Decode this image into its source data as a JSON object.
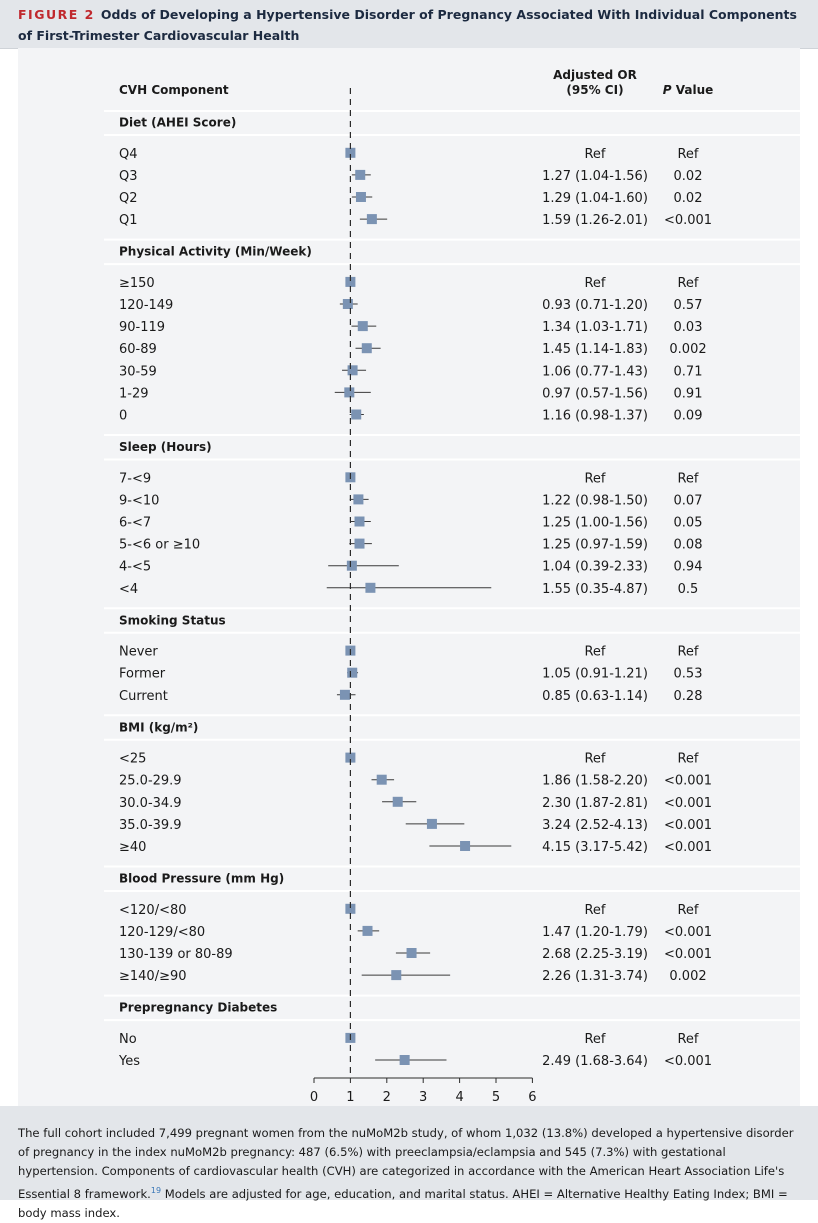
{
  "figure": {
    "label": "FIGURE 2",
    "title": "Odds of Developing a Hypertensive Disorder of Pregnancy Associated With Individual Components of First-Trimester Cardiovascular Health"
  },
  "columns": {
    "component": "CVH Component",
    "or_line1": "Adjusted OR",
    "or_line2": "(95% CI)",
    "p_value_italic": "P",
    "p_value_rest": " Value"
  },
  "chart_data": {
    "type": "forest",
    "xlabel": "Adjusted OR",
    "xlim": [
      0,
      6
    ],
    "xticks": [
      0,
      1,
      2,
      3,
      4,
      5,
      6
    ],
    "reference_line": 1,
    "colors": {
      "marker": "#7b93b3",
      "whisker": "#3a3a3a",
      "panel": "#f3f4f6",
      "header": "#e3e6ea"
    },
    "sections": [
      {
        "name": "Diet (AHEI Score)",
        "rows": [
          {
            "label": "Q4",
            "or": 1.0,
            "lo": 1.0,
            "hi": 1.0,
            "or_text": "Ref",
            "p": "Ref"
          },
          {
            "label": "Q3",
            "or": 1.27,
            "lo": 1.04,
            "hi": 1.56,
            "or_text": "1.27 (1.04-1.56)",
            "p": "0.02"
          },
          {
            "label": "Q2",
            "or": 1.29,
            "lo": 1.04,
            "hi": 1.6,
            "or_text": "1.29 (1.04-1.60)",
            "p": "0.02"
          },
          {
            "label": "Q1",
            "or": 1.59,
            "lo": 1.26,
            "hi": 2.01,
            "or_text": "1.59 (1.26-2.01)",
            "p": "<0.001"
          }
        ]
      },
      {
        "name": "Physical Activity (Min/Week)",
        "rows": [
          {
            "label": "≥150",
            "or": 1.0,
            "lo": 1.0,
            "hi": 1.0,
            "or_text": "Ref",
            "p": "Ref"
          },
          {
            "label": "120-149",
            "or": 0.93,
            "lo": 0.71,
            "hi": 1.2,
            "or_text": "0.93 (0.71-1.20)",
            "p": "0.57"
          },
          {
            "label": "90-119",
            "or": 1.34,
            "lo": 1.03,
            "hi": 1.71,
            "or_text": "1.34 (1.03-1.71)",
            "p": "0.03"
          },
          {
            "label": "60-89",
            "or": 1.45,
            "lo": 1.14,
            "hi": 1.83,
            "or_text": "1.45 (1.14-1.83)",
            "p": "0.002"
          },
          {
            "label": "30-59",
            "or": 1.06,
            "lo": 0.77,
            "hi": 1.43,
            "or_text": "1.06 (0.77-1.43)",
            "p": "0.71"
          },
          {
            "label": "1-29",
            "or": 0.97,
            "lo": 0.57,
            "hi": 1.56,
            "or_text": "0.97 (0.57-1.56)",
            "p": "0.91"
          },
          {
            "label": "0",
            "or": 1.16,
            "lo": 0.98,
            "hi": 1.37,
            "or_text": "1.16 (0.98-1.37)",
            "p": "0.09"
          }
        ]
      },
      {
        "name": "Sleep (Hours)",
        "rows": [
          {
            "label": "7-<9",
            "or": 1.0,
            "lo": 1.0,
            "hi": 1.0,
            "or_text": "Ref",
            "p": "Ref"
          },
          {
            "label": "9-<10",
            "or": 1.22,
            "lo": 0.98,
            "hi": 1.5,
            "or_text": "1.22 (0.98-1.50)",
            "p": "0.07"
          },
          {
            "label": "6-<7",
            "or": 1.25,
            "lo": 1.0,
            "hi": 1.56,
            "or_text": "1.25 (1.00-1.56)",
            "p": "0.05"
          },
          {
            "label": "5-<6 or ≥10",
            "or": 1.25,
            "lo": 0.97,
            "hi": 1.59,
            "or_text": "1.25 (0.97-1.59)",
            "p": "0.08"
          },
          {
            "label": "4-<5",
            "or": 1.04,
            "lo": 0.39,
            "hi": 2.33,
            "or_text": "1.04 (0.39-2.33)",
            "p": "0.94"
          },
          {
            "label": "<4",
            "or": 1.55,
            "lo": 0.35,
            "hi": 4.87,
            "or_text": "1.55 (0.35-4.87)",
            "p": "0.5"
          }
        ]
      },
      {
        "name": "Smoking Status",
        "rows": [
          {
            "label": "Never",
            "or": 1.0,
            "lo": 1.0,
            "hi": 1.0,
            "or_text": "Ref",
            "p": "Ref"
          },
          {
            "label": "Former",
            "or": 1.05,
            "lo": 0.91,
            "hi": 1.21,
            "or_text": "1.05 (0.91-1.21)",
            "p": "0.53"
          },
          {
            "label": "Current",
            "or": 0.85,
            "lo": 0.63,
            "hi": 1.14,
            "or_text": "0.85 (0.63-1.14)",
            "p": "0.28"
          }
        ]
      },
      {
        "name": "BMI (kg/m²)",
        "rows": [
          {
            "label": "<25",
            "or": 1.0,
            "lo": 1.0,
            "hi": 1.0,
            "or_text": "Ref",
            "p": "Ref"
          },
          {
            "label": "25.0-29.9",
            "or": 1.86,
            "lo": 1.58,
            "hi": 2.2,
            "or_text": "1.86 (1.58-2.20)",
            "p": "<0.001"
          },
          {
            "label": "30.0-34.9",
            "or": 2.3,
            "lo": 1.87,
            "hi": 2.81,
            "or_text": "2.30 (1.87-2.81)",
            "p": "<0.001"
          },
          {
            "label": "35.0-39.9",
            "or": 3.24,
            "lo": 2.52,
            "hi": 4.13,
            "or_text": "3.24 (2.52-4.13)",
            "p": "<0.001"
          },
          {
            "label": "≥40",
            "or": 4.15,
            "lo": 3.17,
            "hi": 5.42,
            "or_text": "4.15 (3.17-5.42)",
            "p": "<0.001"
          }
        ]
      },
      {
        "name": "Blood Pressure (mm Hg)",
        "rows": [
          {
            "label": "<120/<80",
            "or": 1.0,
            "lo": 1.0,
            "hi": 1.0,
            "or_text": "Ref",
            "p": "Ref"
          },
          {
            "label": "120-129/<80",
            "or": 1.47,
            "lo": 1.2,
            "hi": 1.79,
            "or_text": "1.47 (1.20-1.79)",
            "p": "<0.001"
          },
          {
            "label": "130-139 or 80-89",
            "or": 2.68,
            "lo": 2.25,
            "hi": 3.19,
            "or_text": "2.68 (2.25-3.19)",
            "p": "<0.001"
          },
          {
            "label": "≥140/≥90",
            "or": 2.26,
            "lo": 1.31,
            "hi": 3.74,
            "or_text": "2.26 (1.31-3.74)",
            "p": "0.002"
          }
        ]
      },
      {
        "name": "Prepregnancy Diabetes",
        "rows": [
          {
            "label": "No",
            "or": 1.0,
            "lo": 1.0,
            "hi": 1.0,
            "or_text": "Ref",
            "p": "Ref"
          },
          {
            "label": "Yes",
            "or": 2.49,
            "lo": 1.68,
            "hi": 3.64,
            "or_text": "2.49 (1.68-3.64)",
            "p": "<0.001"
          }
        ]
      }
    ]
  },
  "footnote": {
    "text": "The full cohort included 7,499 pregnant women from the nuMoM2b study, of whom 1,032 (13.8%) developed a hypertensive disorder of pregnancy in the index nuMoM2b pregnancy: 487 (6.5%) with preeclampsia/eclampsia and 545 (7.3%) with gestational hypertension. Components of cardiovascular health (CVH) are categorized in accordance with the American Heart Association Life's Essential 8 framework.",
    "ref": "19",
    "text2": " Models are adjusted for age, education, and marital status. AHEI = Alternative Healthy Eating Index; BMI = body mass index."
  }
}
